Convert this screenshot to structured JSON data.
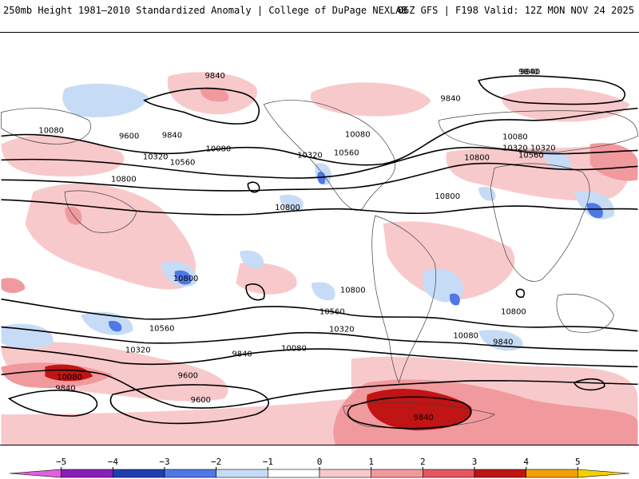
{
  "header": {
    "left_title": "250mb Height 1981–2010 Standardized Anomaly | College of DuPage NEXLAB",
    "right_title": "06Z GFS | F198 Valid: 12Z MON NOV 24 2025"
  },
  "colorbar": {
    "ticks": [
      "−5",
      "−4",
      "−3",
      "−2",
      "−1",
      "0",
      "1",
      "2",
      "3",
      "4",
      "5"
    ],
    "colors": [
      "#e060e0",
      "#8a1fb8",
      "#1f3fb0",
      "#4f78e6",
      "#c6dcf6",
      "#ffffff",
      "#f8c9cb",
      "#f19a9e",
      "#e3585e",
      "#c11414",
      "#f2a000",
      "#f5d000"
    ]
  },
  "contour_labels": [
    "9840",
    "9840",
    "9840",
    "10080",
    "9600",
    "9840",
    "10080",
    "10320",
    "10560",
    "10800",
    "10320",
    "10560",
    "10080",
    "10320",
    "9840",
    "10080",
    "10320",
    "10560",
    "10800",
    "10800",
    "10800",
    "10800",
    "10800",
    "10560",
    "10560",
    "10320",
    "10320",
    "10080",
    "10080",
    "9840",
    "9840",
    "9600",
    "9600",
    "10080",
    "9840",
    "9840",
    "10800"
  ]
}
